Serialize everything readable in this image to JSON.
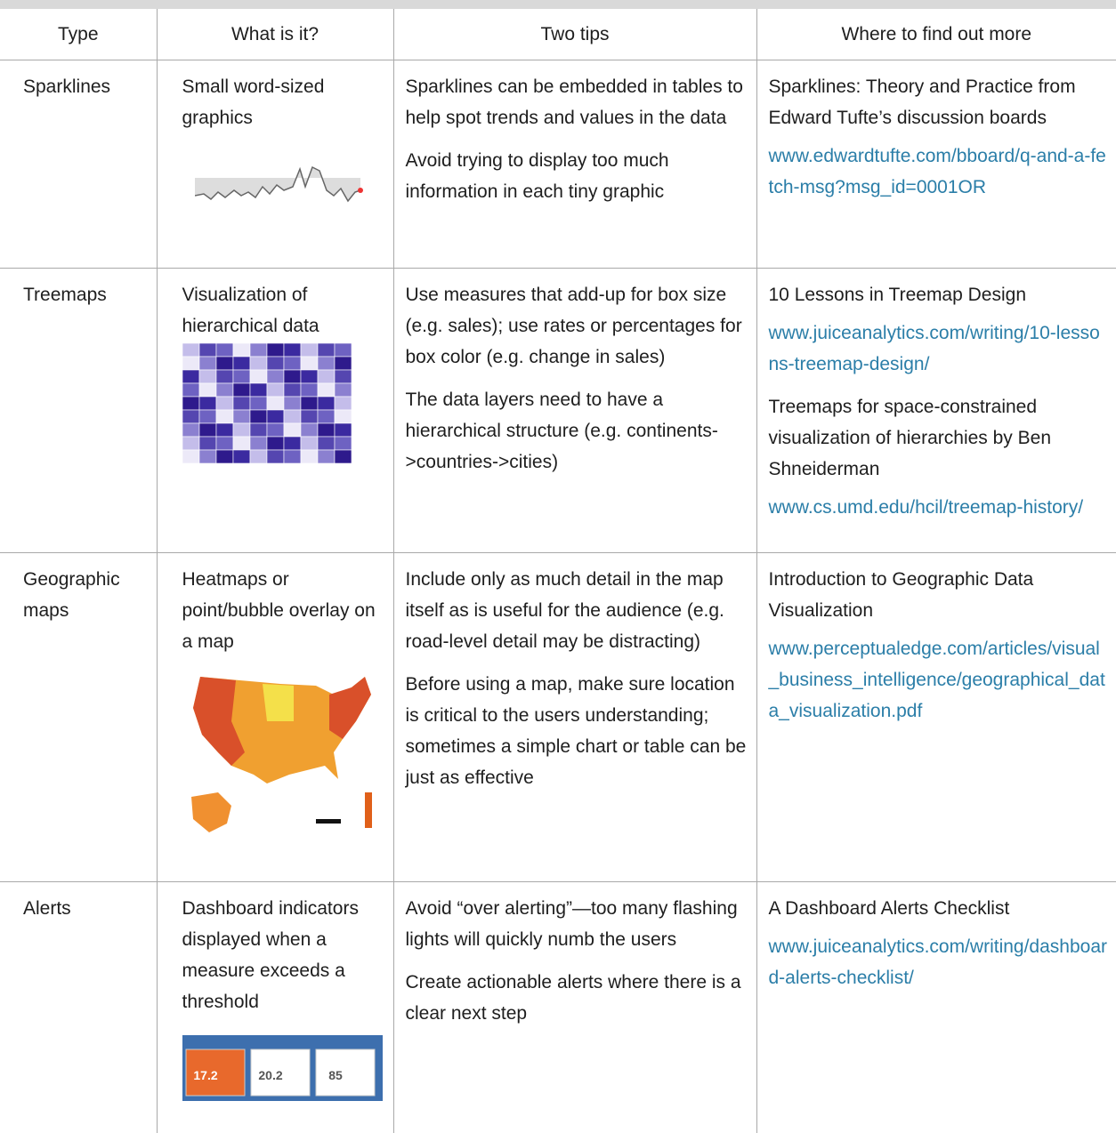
{
  "table": {
    "headers": [
      "Type",
      "What is it?",
      "Two tips",
      "Where to find out more"
    ],
    "rows": [
      {
        "type": "Sparklines",
        "what": "Small word-sized graphics",
        "tips": [
          "Sparklines can be embedded in tables to help spot trends and values in the data",
          "Avoid trying to display too much information in each tiny graphic"
        ],
        "more": [
          {
            "title": "Sparklines: Theory and Practice from Edward Tufte’s discussion boards",
            "url": "www.edwardtufte.com/bboard/q-and-a-fetch-msg?msg_id=0001OR"
          }
        ]
      },
      {
        "type": "Treemaps",
        "what": "Visualization of hierarchical data",
        "tips": [
          "Use measures that add-up for box size (e.g. sales); use rates or percentages for box color (e.g. change in sales)",
          "The data layers need to have a hierarchical structure (e.g. continents->countries->cities)"
        ],
        "more": [
          {
            "title": "10 Lessons in Treemap Design",
            "url": "www.juiceanalytics.com/writing/10-lessons-treemap-design/"
          },
          {
            "title": "Treemaps for space-constrained visualization of hierarchies by Ben Shneiderman",
            "url": "www.cs.umd.edu/hcil/treemap-history/"
          }
        ]
      },
      {
        "type": "Geographic maps",
        "what": "Heatmaps or point/bubble overlay on a map",
        "tips": [
          "Include only as much detail in the map itself as is useful for the audience (e.g. road-level detail may be distracting)",
          "Before using a map, make sure location is critical to the users understanding; sometimes a simple chart or table can be just as effective"
        ],
        "more": [
          {
            "title": "Introduction to Geographic Data Visualization",
            "url": "www.perceptualedge.com/articles/visual_business_intelligence/geographical_data_visualization.pdf"
          }
        ]
      },
      {
        "type": "Alerts",
        "what": "Dashboard indicators displayed when a measure exceeds a threshold",
        "tips": [
          "Avoid “over alerting”—too many flashing lights will quickly numb the users",
          "Create actionable alerts where there is a clear next step"
        ],
        "more": [
          {
            "title": "A Dashboard Alerts Checklist",
            "url": "www.juiceanalytics.com/writing/dashboard-alerts-checklist/"
          }
        ],
        "alert_values": [
          "17.2",
          "20.2",
          "85"
        ]
      }
    ]
  }
}
